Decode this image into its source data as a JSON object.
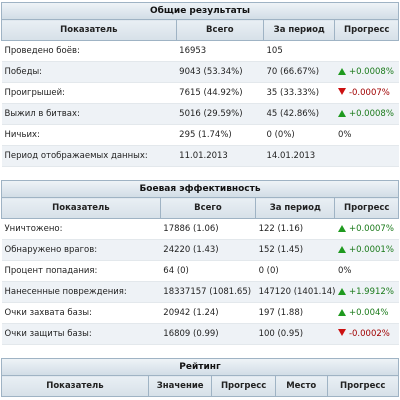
{
  "overall": {
    "title": "Общие результаты",
    "headers": [
      "Показатель",
      "Всего",
      "За период",
      "Прогресс"
    ],
    "rows": [
      {
        "label": "Проведено боёв:",
        "total": "16953",
        "period": "105",
        "progress": "",
        "trend": "none"
      },
      {
        "label": "Победы:",
        "total": "9043 (53.34%)",
        "period": "70 (66.67%)",
        "progress": "+0.0008%",
        "trend": "up"
      },
      {
        "label": "Проигрышей:",
        "total": "7615 (44.92%)",
        "period": "35 (33.33%)",
        "progress": "-0.0007%",
        "trend": "down"
      },
      {
        "label": "Выжил в битвах:",
        "total": "5016 (29.59%)",
        "period": "45 (42.86%)",
        "progress": "+0.0008%",
        "trend": "up"
      },
      {
        "label": "Ничьих:",
        "total": "295 (1.74%)",
        "period": "0 (0%)",
        "progress": "0%",
        "trend": "none"
      },
      {
        "label": "Период отображаемых данных:",
        "total": "11.01.2013",
        "period": "14.01.2013",
        "progress": "",
        "trend": "none"
      }
    ]
  },
  "battle": {
    "title": "Боевая эффективность",
    "headers": [
      "Показатель",
      "Всего",
      "За период",
      "Прогресс"
    ],
    "rows": [
      {
        "label": "Уничтожено:",
        "total": "17886 (1.06)",
        "period": "122 (1.16)",
        "progress": "+0.0007%",
        "trend": "up"
      },
      {
        "label": "Обнаружено врагов:",
        "total": "24220 (1.43)",
        "period": "152 (1.45)",
        "progress": "+0.0001%",
        "trend": "up"
      },
      {
        "label": "Процент попадания:",
        "total": "64 (0)",
        "period": "0 (0)",
        "progress": "0%",
        "trend": "none"
      },
      {
        "label": "Нанесенные повреждения:",
        "total": "18337157 (1081.65)",
        "period": "147120 (1401.14)",
        "progress": "+1.9912%",
        "trend": "up"
      },
      {
        "label": "Очки захвата базы:",
        "total": "20942 (1.24)",
        "period": "197 (1.88)",
        "progress": "+0.004%",
        "trend": "up"
      },
      {
        "label": "Очки защиты базы:",
        "total": "16809 (0.99)",
        "period": "100 (0.95)",
        "progress": "-0.0002%",
        "trend": "down"
      }
    ]
  },
  "rating": {
    "title": "Рейтинг",
    "headers": [
      "Показатель",
      "Значение",
      "Прогресс",
      "Место",
      "Прогресс"
    ]
  },
  "colors": {
    "up": "#1f9a1f",
    "down": "#cc1111",
    "header_border": "#9fb3c4"
  }
}
